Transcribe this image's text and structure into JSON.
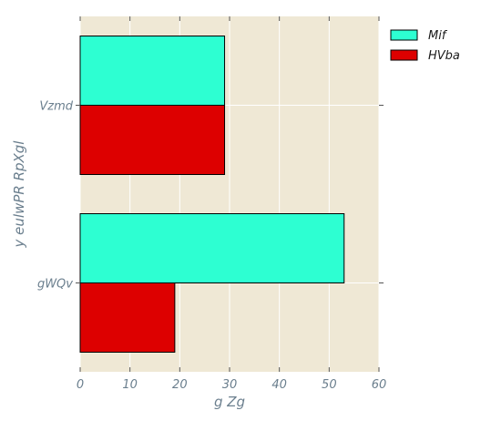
{
  "chart_data": {
    "type": "bar",
    "orientation": "horizontal",
    "categories": [
      "Vzmd",
      "gWQv"
    ],
    "series": [
      {
        "name": "Mif",
        "values": [
          29,
          53
        ],
        "color": "#2dffd2"
      },
      {
        "name": "HVba",
        "values": [
          29,
          19
        ],
        "color": "#dd0000"
      }
    ],
    "xlabel": "g Zg",
    "ylabel": "y eulwPR RpXgl",
    "xlim": [
      0,
      60
    ],
    "xticks": [
      0,
      10,
      20,
      30,
      40,
      50,
      60
    ],
    "grid": true,
    "legend_position": "top-right",
    "background_color": "#efe8d5"
  }
}
